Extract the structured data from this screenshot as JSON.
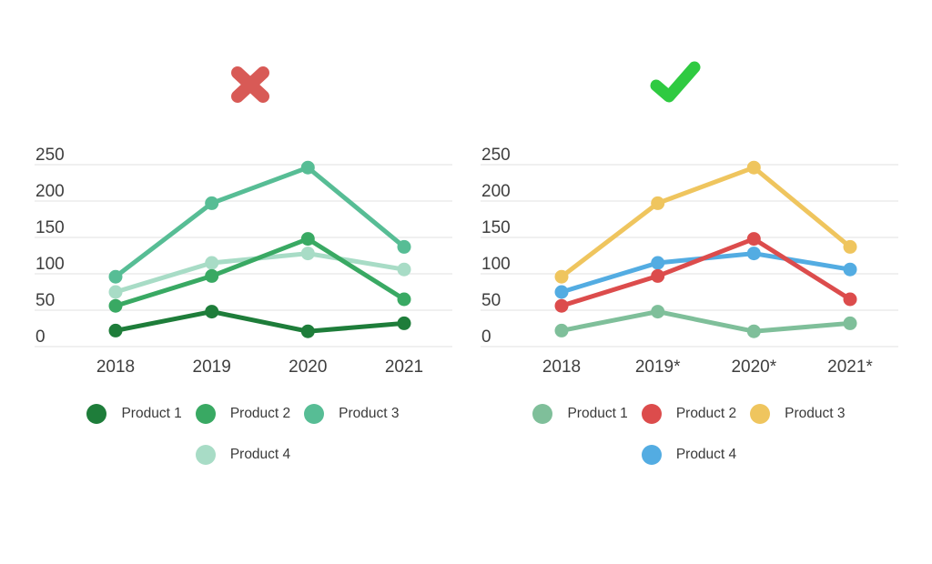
{
  "page": {
    "background": "#ffffff",
    "bad_icon_color": "#d85a56",
    "good_icon_color": "#2fca41",
    "grid_color": "#ebebeb",
    "axis_text_color": "#3e3e3e"
  },
  "chart_data": [
    {
      "type": "line",
      "variant": "bad-example-monochrome-palette",
      "status_icon": "x-mark",
      "categories": [
        "2018",
        "2019",
        "2020",
        "2021"
      ],
      "series": [
        {
          "name": "Product 1",
          "color": "#1e7d3a",
          "values": [
            22,
            48,
            21,
            32
          ]
        },
        {
          "name": "Product 2",
          "color": "#39a963",
          "values": [
            56,
            97,
            148,
            65
          ]
        },
        {
          "name": "Product 3",
          "color": "#57bd95",
          "values": [
            96,
            197,
            246,
            137
          ]
        },
        {
          "name": "Product 4",
          "color": "#a8dcc6",
          "values": [
            75,
            115,
            128,
            106
          ]
        }
      ],
      "ylim": [
        0,
        250
      ],
      "yticks": [
        0,
        50,
        100,
        150,
        200,
        250
      ],
      "grid": "horizontal",
      "legend_position": "bottom"
    },
    {
      "type": "line",
      "variant": "good-example-distinct-palette",
      "status_icon": "check-mark",
      "categories": [
        "2018",
        "2019*",
        "2020*",
        "2021*"
      ],
      "series": [
        {
          "name": "Product 1",
          "color": "#7fbf9a",
          "values": [
            22,
            48,
            21,
            32
          ]
        },
        {
          "name": "Product 2",
          "color": "#dc4c4c",
          "values": [
            56,
            97,
            148,
            65
          ]
        },
        {
          "name": "Product 3",
          "color": "#efc55e",
          "values": [
            96,
            197,
            246,
            137
          ]
        },
        {
          "name": "Product 4",
          "color": "#53ace2",
          "values": [
            75,
            115,
            128,
            106
          ]
        }
      ],
      "ylim": [
        0,
        250
      ],
      "yticks": [
        0,
        50,
        100,
        150,
        200,
        250
      ],
      "grid": "horizontal",
      "legend_position": "bottom"
    }
  ]
}
